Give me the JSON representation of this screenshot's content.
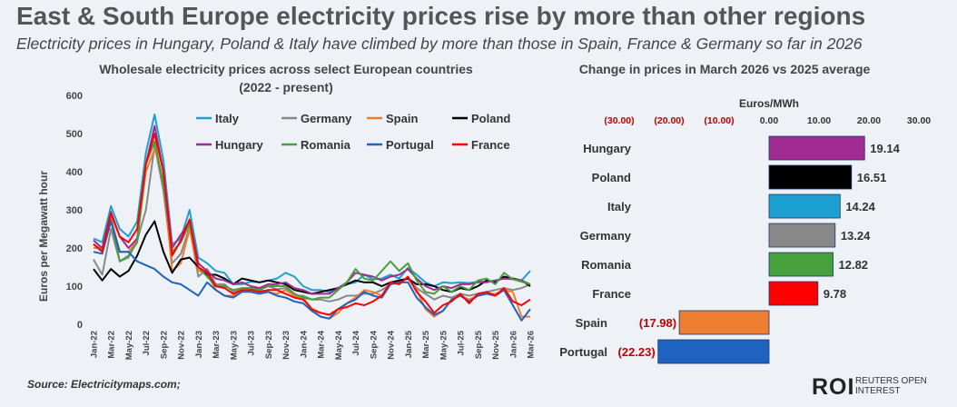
{
  "header": {
    "title": "East & South Europe electricity prices rise by more than other regions",
    "subtitle": "Electricity prices in Hungary, Poland & Italy have climbed by more than those in Spain, France & Germany so far in 2026"
  },
  "footer": {
    "source": "Source:  Electricitymaps.com;",
    "logo": "ROI",
    "logo_tagline": "REUTERS OPEN INTEREST"
  },
  "colors": {
    "Italy": "#1ca0d2",
    "Germany": "#888888",
    "Spain": "#ed7d31",
    "Poland": "#000000",
    "Hungary": "#a02b93",
    "Romania": "#46a03c",
    "Portugal": "#1f63c0",
    "France": "#ff0000"
  },
  "chart_data": [
    {
      "type": "line",
      "title": "Wholesale electricity prices across select European countries",
      "title_line2": "(2022 - present)",
      "ylabel": "Euros per Megawatt hour",
      "xlabel": "",
      "ylim": [
        0,
        600
      ],
      "yticks": [
        "0",
        "100",
        "200",
        "300",
        "400",
        "500",
        "600"
      ],
      "legend_position": "top",
      "grid": false,
      "x": [
        "Jan-22",
        "Feb-22",
        "Mar-22",
        "Apr-22",
        "May-22",
        "Jun-22",
        "Jul-22",
        "Aug-22",
        "Sep-22",
        "Oct-22",
        "Nov-22",
        "Dec-22",
        "Jan-23",
        "Feb-23",
        "Mar-23",
        "Apr-23",
        "May-23",
        "Jun-23",
        "Jul-23",
        "Aug-23",
        "Sep-23",
        "Oct-23",
        "Nov-23",
        "Dec-23",
        "Jan-24",
        "Feb-24",
        "Mar-24",
        "Apr-24",
        "May-24",
        "Jun-24",
        "Jul-24",
        "Aug-24",
        "Sep-24",
        "Oct-24",
        "Nov-24",
        "Dec-24",
        "Jan-25",
        "Feb-25",
        "Mar-25",
        "Apr-25",
        "May-25",
        "Jun-25",
        "Jul-25",
        "Aug-25",
        "Sep-25",
        "Oct-25",
        "Nov-25",
        "Dec-25",
        "Jan-26",
        "Feb-26",
        "Mar-26"
      ],
      "xtick_labels": [
        "Jan-22",
        "Mar-22",
        "May-22",
        "Jul-22",
        "Sep-22",
        "Nov-22",
        "Jan-23",
        "Mar-23",
        "May-23",
        "Jul-23",
        "Sep-23",
        "Nov-23",
        "Jan-24",
        "Mar-24",
        "May-24",
        "Jul-24",
        "Sep-24",
        "Nov-24",
        "Jan-25",
        "Mar-25",
        "May-25",
        "Jul-25",
        "Sep-25",
        "Nov-25",
        "Jan-26",
        "Mar-26"
      ],
      "series": [
        {
          "name": "Italy",
          "values": [
            225,
            215,
            310,
            250,
            230,
            270,
            450,
            550,
            430,
            210,
            225,
            300,
            175,
            160,
            140,
            135,
            105,
            105,
            112,
            110,
            115,
            120,
            135,
            125,
            100,
            90,
            90,
            85,
            95,
            105,
            110,
            130,
            118,
            120,
            130,
            120,
            148,
            130,
            110,
            100,
            110,
            108,
            110,
            108,
            112,
            112,
            115,
            120,
            120,
            115,
            140
          ]
        },
        {
          "name": "Germany",
          "values": [
            170,
            130,
            250,
            165,
            175,
            220,
            300,
            470,
            350,
            160,
            185,
            255,
            125,
            145,
            105,
            105,
            85,
            95,
            95,
            95,
            100,
            92,
            95,
            75,
            75,
            65,
            65,
            60,
            65,
            75,
            75,
            80,
            80,
            90,
            105,
            115,
            120,
            95,
            80,
            65,
            75,
            70,
            80,
            75,
            80,
            85,
            90,
            95,
            90,
            95,
            105
          ]
        },
        {
          "name": "Spain",
          "values": [
            200,
            200,
            280,
            190,
            190,
            220,
            400,
            460,
            380,
            140,
            160,
            250,
            140,
            135,
            90,
            75,
            75,
            90,
            90,
            90,
            85,
            80,
            90,
            75,
            70,
            40,
            20,
            15,
            30,
            55,
            70,
            90,
            85,
            75,
            105,
            110,
            120,
            90,
            40,
            20,
            35,
            65,
            75,
            65,
            75,
            80,
            80,
            90,
            85,
            20,
            20
          ]
        },
        {
          "name": "Poland",
          "values": [
            145,
            115,
            145,
            125,
            140,
            180,
            235,
            270,
            190,
            135,
            170,
            175,
            150,
            130,
            130,
            120,
            105,
            120,
            115,
            110,
            115,
            110,
            105,
            90,
            85,
            80,
            85,
            90,
            95,
            105,
            115,
            110,
            110,
            100,
            110,
            115,
            120,
            105,
            105,
            100,
            90,
            85,
            95,
            90,
            100,
            115,
            110,
            125,
            120,
            115,
            100
          ]
        },
        {
          "name": "Hungary",
          "values": [
            220,
            200,
            295,
            230,
            200,
            225,
            420,
            520,
            400,
            200,
            235,
            270,
            160,
            140,
            120,
            115,
            105,
            110,
            100,
            95,
            105,
            105,
            110,
            95,
            90,
            80,
            80,
            80,
            95,
            110,
            135,
            130,
            125,
            115,
            125,
            130,
            145,
            120,
            100,
            90,
            100,
            95,
            105,
            105,
            110,
            110,
            115,
            120,
            118,
            115,
            105
          ]
        },
        {
          "name": "Romania",
          "values": [
            210,
            195,
            275,
            165,
            180,
            215,
            420,
            480,
            365,
            190,
            215,
            265,
            150,
            125,
            100,
            100,
            90,
            95,
            95,
            90,
            100,
            100,
            100,
            80,
            70,
            65,
            70,
            70,
            90,
            110,
            145,
            120,
            115,
            140,
            165,
            140,
            160,
            115,
            85,
            80,
            100,
            85,
            100,
            90,
            115,
            120,
            105,
            135,
            118,
            112,
            105
          ]
        },
        {
          "name": "Portugal",
          "values": [
            190,
            185,
            270,
            190,
            190,
            165,
            155,
            145,
            125,
            110,
            105,
            90,
            75,
            110,
            90,
            75,
            70,
            85,
            85,
            80,
            85,
            75,
            70,
            60,
            55,
            35,
            20,
            15,
            40,
            55,
            65,
            85,
            75,
            70,
            105,
            110,
            110,
            70,
            45,
            25,
            35,
            65,
            75,
            60,
            75,
            80,
            75,
            90,
            50,
            10,
            40
          ]
        },
        {
          "name": "France",
          "values": [
            210,
            190,
            290,
            230,
            215,
            250,
            420,
            500,
            400,
            180,
            220,
            275,
            150,
            135,
            100,
            95,
            80,
            90,
            90,
            85,
            90,
            90,
            80,
            70,
            65,
            40,
            30,
            25,
            40,
            45,
            55,
            50,
            60,
            75,
            110,
            105,
            125,
            85,
            60,
            30,
            50,
            60,
            80,
            55,
            80,
            85,
            75,
            95,
            60,
            50,
            65
          ]
        }
      ]
    },
    {
      "type": "bar",
      "orientation": "horizontal",
      "title": "Change in prices in March 2026 vs 2025 average",
      "xlabel": "Euros/MWh",
      "xlim": [
        -30,
        30
      ],
      "xticks": [
        "(30.00)",
        "(20.00)",
        "(10.00)",
        "0.00",
        "10.00",
        "20.00",
        "30.00"
      ],
      "categories": [
        "Hungary",
        "Poland",
        "Italy",
        "Germany",
        "Romania",
        "France",
        "Spain",
        "Portugal"
      ],
      "values": [
        19.14,
        16.51,
        14.24,
        13.24,
        12.82,
        9.78,
        -17.98,
        -22.23
      ],
      "value_labels": [
        "19.14",
        "16.51",
        "14.24",
        "13.24",
        "12.82",
        "9.78",
        "(17.98)",
        "(22.23)"
      ]
    }
  ]
}
